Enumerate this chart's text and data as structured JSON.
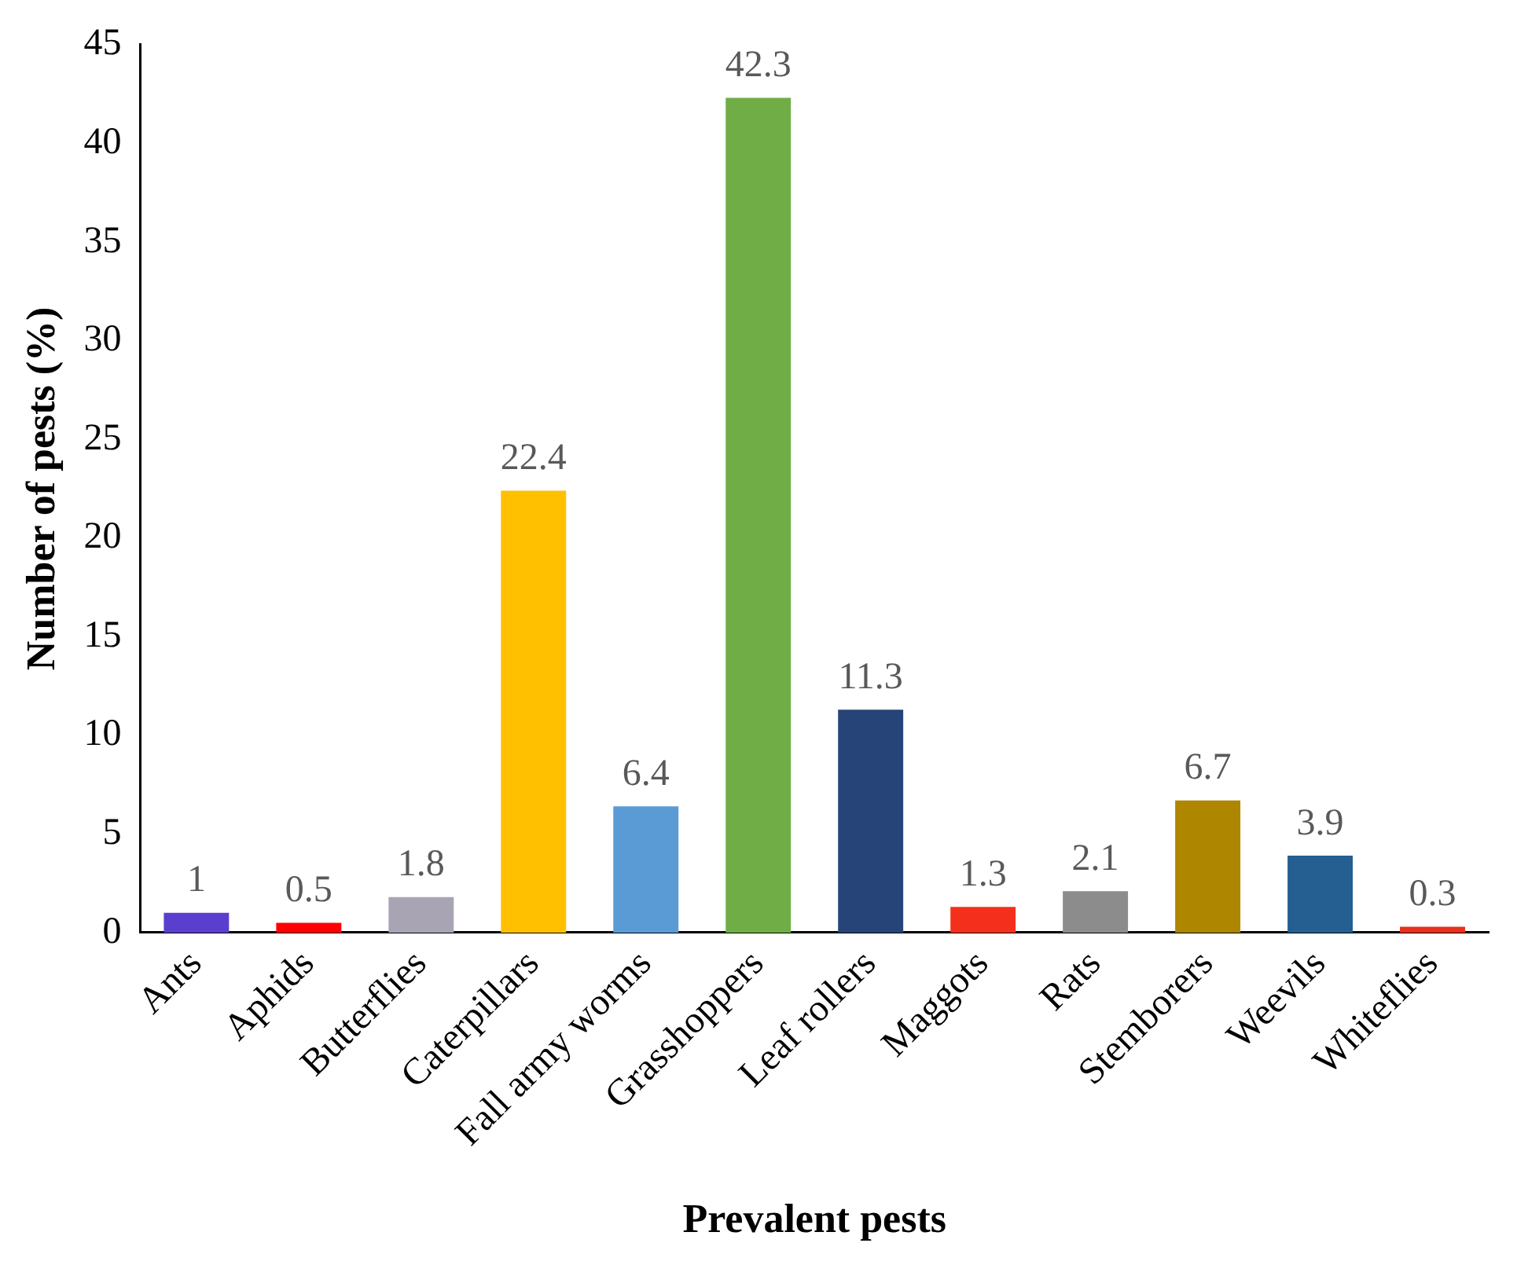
{
  "chart_data": {
    "type": "bar",
    "xlabel": "Prevalent pests",
    "ylabel": "Number of pests (%)",
    "categories": [
      "Ants",
      "Aphids",
      "Butterflies",
      "Caterpillars",
      "Fall army worms",
      "Grasshoppers",
      "Leaf rollers",
      "Maggots",
      "Rats",
      "Stemborers",
      "Weevils",
      "Whiteflies"
    ],
    "values": [
      1,
      0.5,
      1.8,
      22.4,
      6.4,
      42.3,
      11.3,
      1.3,
      2.1,
      6.7,
      3.9,
      0.3
    ],
    "colors": [
      "#5a3fcf",
      "#ff0000",
      "#a9a4b4",
      "#ffc000",
      "#5b9bd5",
      "#70ad47",
      "#264478",
      "#f4301c",
      "#8c8c8c",
      "#ae8600",
      "#255e91",
      "#e8301c"
    ],
    "ylim": [
      0,
      45
    ],
    "yticks": [
      0,
      5,
      10,
      15,
      20,
      25,
      30,
      35,
      40,
      45
    ],
    "grid": false,
    "legend": false,
    "data_labels": true
  }
}
